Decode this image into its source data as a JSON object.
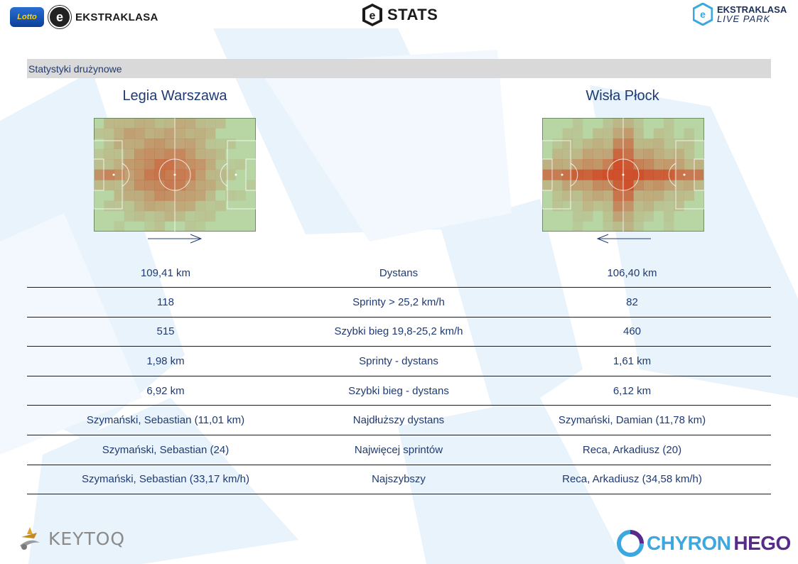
{
  "header": {
    "lotto_label": "Lotto",
    "ekstraklasa_label": "EKSTRAKLASA",
    "stats_label": "STATS",
    "liveparks_line1": "EKSTRAKLASA",
    "liveparks_line2": "LIVE PARK",
    "e_glyph": "e"
  },
  "section": {
    "title": "Statystyki drużynowe"
  },
  "teams": {
    "home": {
      "name": "Legia Warszawa",
      "direction": "right"
    },
    "away": {
      "name": "Wisła Płock",
      "direction": "left"
    }
  },
  "stats_rows": [
    {
      "home": "109,41 km",
      "label": "Dystans",
      "away": "106,40 km"
    },
    {
      "home": "118",
      "label": "Sprinty > 25,2 km/h",
      "away": "82"
    },
    {
      "home": "515",
      "label": "Szybki bieg 19,8-25,2 km/h",
      "away": "460"
    },
    {
      "home": "1,98 km",
      "label": "Sprinty - dystans",
      "away": "1,61 km"
    },
    {
      "home": "6,92 km",
      "label": "Szybki bieg - dystans",
      "away": "6,12 km"
    },
    {
      "home": "Szymański, Sebastian (11,01 km)",
      "label": "Najdłuższy dystans",
      "away": "Szymański, Damian (11,78 km)"
    },
    {
      "home": "Szymański, Sebastian (24)",
      "label": "Najwięcej sprintów",
      "away": "Reca, Arkadiusz (20)"
    },
    {
      "home": "Szymański, Sebastian (33,17 km/h)",
      "label": "Najszybszy",
      "away": "Reca, Arkadiusz (34,58 km/h)"
    }
  ],
  "footer": {
    "keytoq_label": "KEYTOQ",
    "chyron_part1": "CHYRON",
    "chyron_part2": "HEGO"
  },
  "colors": {
    "text_blue": "#1f3b73",
    "section_bg": "#d9d9d9",
    "pitch_green": "#b7d6a3",
    "heat_red": "#d23a17"
  }
}
